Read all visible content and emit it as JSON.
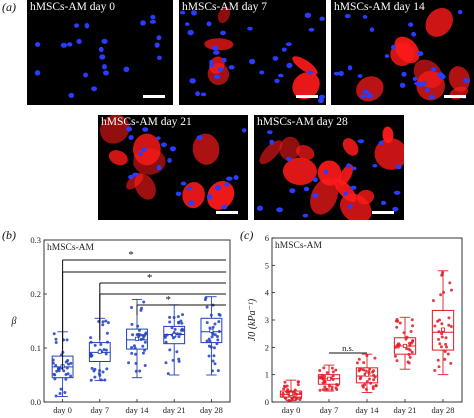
{
  "panels": {
    "a": "(a)",
    "b": "(b)",
    "c": "(c)"
  },
  "micrographs": [
    {
      "title": "hMSCs-AM day 0",
      "red": 0
    },
    {
      "title": "hMSCs-AM day 7",
      "red": 0.45
    },
    {
      "title": "hMSCs-AM day 14",
      "red": 0.55
    },
    {
      "title": "hMSCs-AM day 21",
      "red": 0.65
    },
    {
      "title": "hMSCs-AM day 28",
      "red": 0.9
    }
  ],
  "colors": {
    "nuclei": "#2a3cff",
    "actin": "#ff1a1a",
    "chart_b": "#1f3fbf",
    "chart_c": "#e01b24"
  },
  "chart_data": [
    {
      "type": "box",
      "title": "hMSCs-AM",
      "ylabel": "β",
      "categories": [
        "day 0",
        "day 7",
        "day 14",
        "day 21",
        "day 28"
      ],
      "ylim": [
        0.0,
        0.3
      ],
      "yticks": [
        "0.0",
        "0.1",
        "0.2",
        "0.3"
      ],
      "series": [
        {
          "min": 0.01,
          "q1": 0.045,
          "median": 0.065,
          "q3": 0.085,
          "max": 0.13,
          "mean": 0.066
        },
        {
          "min": 0.04,
          "q1": 0.075,
          "median": 0.092,
          "q3": 0.11,
          "max": 0.155,
          "mean": 0.093
        },
        {
          "min": 0.045,
          "q1": 0.098,
          "median": 0.115,
          "q3": 0.135,
          "max": 0.19,
          "mean": 0.117
        },
        {
          "min": 0.05,
          "q1": 0.108,
          "median": 0.125,
          "q3": 0.14,
          "max": 0.18,
          "mean": 0.124
        },
        {
          "min": 0.05,
          "q1": 0.11,
          "median": 0.13,
          "q3": 0.155,
          "max": 0.195,
          "mean": 0.132
        }
      ],
      "significance": [
        {
          "from": "day 0",
          "to": "day 28",
          "label": "*"
        },
        {
          "from": "day 0",
          "to": "day 21",
          "label": ""
        },
        {
          "from": "day 7",
          "to": "day 28",
          "label": "*"
        },
        {
          "from": "day 7",
          "to": "day 21",
          "label": ""
        },
        {
          "from": "day 14",
          "to": "day 28",
          "label": "*"
        }
      ]
    },
    {
      "type": "box",
      "title": "hMSCs-AM",
      "ylabel": "J0 (kPa⁻¹)",
      "categories": [
        "day 0",
        "day 7",
        "day 14",
        "day 21",
        "day 28"
      ],
      "ylim": [
        0,
        6
      ],
      "yticks": [
        "0",
        "1",
        "2",
        "3",
        "4",
        "5",
        "6"
      ],
      "series": [
        {
          "min": 0.05,
          "q1": 0.18,
          "median": 0.28,
          "q3": 0.4,
          "max": 0.8,
          "mean": 0.3
        },
        {
          "min": 0.4,
          "q1": 0.65,
          "median": 0.85,
          "q3": 1.0,
          "max": 1.35,
          "mean": 0.85
        },
        {
          "min": 0.35,
          "q1": 0.7,
          "median": 0.95,
          "q3": 1.25,
          "max": 1.75,
          "mean": 1.0
        },
        {
          "min": 1.2,
          "q1": 1.75,
          "median": 2.05,
          "q3": 2.35,
          "max": 3.1,
          "mean": 2.05
        },
        {
          "min": 1.0,
          "q1": 1.9,
          "median": 2.55,
          "q3": 3.35,
          "max": 4.8,
          "mean": 2.65
        }
      ],
      "significance": [
        {
          "from": "day 7",
          "to": "day 14",
          "label": "n.s."
        }
      ]
    }
  ]
}
